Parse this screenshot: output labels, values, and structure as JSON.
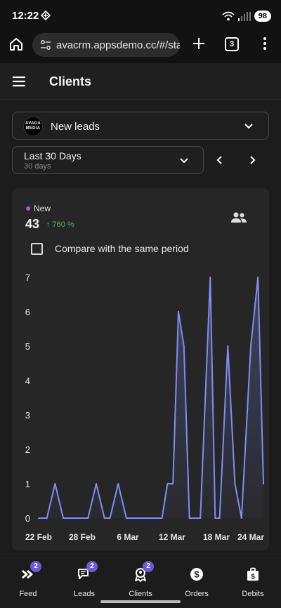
{
  "status_bar": {
    "time": "12:22",
    "battery": "98"
  },
  "browser": {
    "url": "avacrm.appsdemo.cc/#/sta",
    "tab_count": "3"
  },
  "app_bar": {
    "title": "Clients"
  },
  "filters": {
    "source_select": {
      "logo_text_top": "AVADA",
      "logo_text_bottom": "MEDIA",
      "label": "New leads"
    },
    "period_select": {
      "label": "Last 30 Days",
      "sublabel": "30 days"
    }
  },
  "stats": {
    "legend_label": "New",
    "legend_color": "#b455c8",
    "count": "43",
    "trend": "↑ 760 %",
    "trend_color": "#4cbb5b",
    "compare_label": "Compare with the same period",
    "compare_checked": false
  },
  "chart_data": {
    "type": "area",
    "y_ticks": [
      "0",
      "1",
      "2",
      "3",
      "4",
      "5",
      "6",
      "7"
    ],
    "x_ticks": [
      "22 Feb",
      "28 Feb",
      "6 Mar",
      "12 Mar",
      "18 Mar",
      "24 Mar"
    ],
    "ylim": [
      0,
      7
    ],
    "x_range_days": [
      0,
      32
    ],
    "line_color": "#7e8ef2",
    "series": [
      {
        "points": [
          [
            0,
            0
          ],
          [
            1.5,
            0
          ],
          [
            3,
            1
          ],
          [
            4.5,
            0
          ],
          [
            9,
            0
          ],
          [
            10.5,
            1
          ],
          [
            12,
            0
          ],
          [
            13,
            0
          ],
          [
            14.5,
            1
          ],
          [
            16,
            0
          ],
          [
            22.5,
            0
          ],
          [
            23.5,
            1
          ],
          [
            24.5,
            1
          ],
          [
            25.5,
            6
          ],
          [
            26.5,
            5
          ],
          [
            27.5,
            0
          ],
          [
            29.5,
            0
          ],
          [
            31.3,
            7
          ],
          [
            32.2,
            0
          ],
          [
            33,
            0
          ],
          [
            34.5,
            5
          ],
          [
            35.8,
            1
          ],
          [
            37,
            0
          ],
          [
            38.7,
            5
          ],
          [
            40,
            7
          ],
          [
            41,
            1
          ]
        ]
      }
    ]
  },
  "bottom_nav": {
    "items": [
      {
        "label": "Feed",
        "badge": "2",
        "icon": "feed-icon"
      },
      {
        "label": "Leads",
        "badge": "2",
        "icon": "leads-icon"
      },
      {
        "label": "Clients",
        "badge": "2",
        "icon": "clients-icon"
      },
      {
        "label": "Orders",
        "badge": "",
        "icon": "orders-icon"
      },
      {
        "label": "Debits",
        "badge": "",
        "icon": "debits-icon"
      }
    ]
  }
}
